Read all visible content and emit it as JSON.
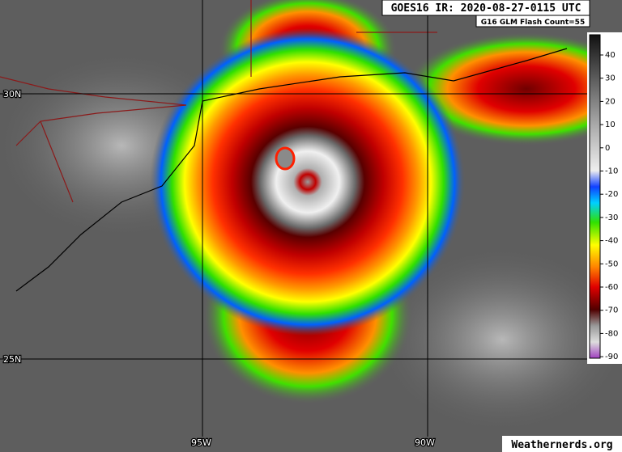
{
  "header": {
    "title": "GOES16 IR: 2020-08-27-0115 UTC",
    "subtitle": "G16 GLM Flash Count=55"
  },
  "grid_labels": {
    "lat": [
      "30N",
      "25N"
    ],
    "lon": [
      "95W",
      "90W"
    ]
  },
  "colorbar": {
    "ticks": [
      "40",
      "30",
      "20",
      "10",
      "0",
      "-10",
      "-20",
      "-30",
      "-40",
      "-50",
      "-60",
      "-70",
      "-80",
      "-90"
    ]
  },
  "watermark": "Weathernerds.org"
}
